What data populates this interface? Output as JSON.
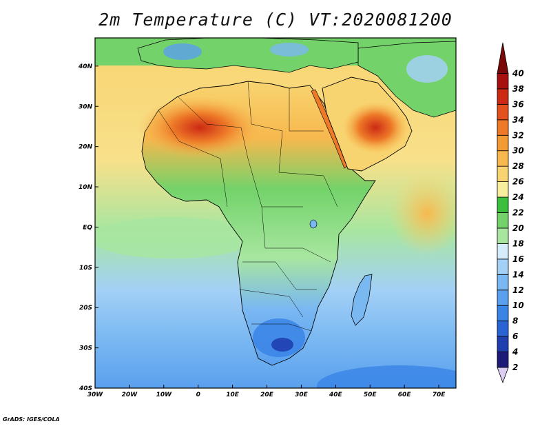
{
  "title": "2m Temperature (C) VT:2020081200",
  "credit": "GrADS: IGES/COLA",
  "map": {
    "lon_range": [
      -30,
      75
    ],
    "lat_range": [
      -40,
      47
    ],
    "lon_ticks": [
      {
        "value": -30,
        "label": "30W"
      },
      {
        "value": -20,
        "label": "20W"
      },
      {
        "value": -10,
        "label": "10W"
      },
      {
        "value": 0,
        "label": "0"
      },
      {
        "value": 10,
        "label": "10E"
      },
      {
        "value": 20,
        "label": "20E"
      },
      {
        "value": 30,
        "label": "30E"
      },
      {
        "value": 40,
        "label": "40E"
      },
      {
        "value": 50,
        "label": "50E"
      },
      {
        "value": 60,
        "label": "60E"
      },
      {
        "value": 70,
        "label": "70E"
      }
    ],
    "lat_ticks": [
      {
        "value": 40,
        "label": "40N"
      },
      {
        "value": 30,
        "label": "30N"
      },
      {
        "value": 20,
        "label": "20N"
      },
      {
        "value": 10,
        "label": "10N"
      },
      {
        "value": 0,
        "label": "EQ"
      },
      {
        "value": -10,
        "label": "10S"
      },
      {
        "value": -20,
        "label": "20S"
      },
      {
        "value": -30,
        "label": "30S"
      },
      {
        "value": -40,
        "label": "40S"
      }
    ]
  },
  "colorbar": {
    "levels": [
      "2",
      "4",
      "6",
      "8",
      "10",
      "12",
      "14",
      "16",
      "18",
      "20",
      "22",
      "24",
      "26",
      "28",
      "30",
      "32",
      "34",
      "36",
      "38",
      "40"
    ],
    "colors": [
      "#1c1c78",
      "#1f3fb0",
      "#2a63d4",
      "#3a84e6",
      "#5aa0ee",
      "#7ab8f2",
      "#a3d0f6",
      "#d4ecfb",
      "#a8e6a0",
      "#73d36a",
      "#3cbf3c",
      "#f8ee9e",
      "#f8d470",
      "#f7b84e",
      "#f39a34",
      "#ee7a28",
      "#e4501e",
      "#cc2a14",
      "#a81010",
      "#7a0808"
    ],
    "under_color": "#dccdf3"
  }
}
